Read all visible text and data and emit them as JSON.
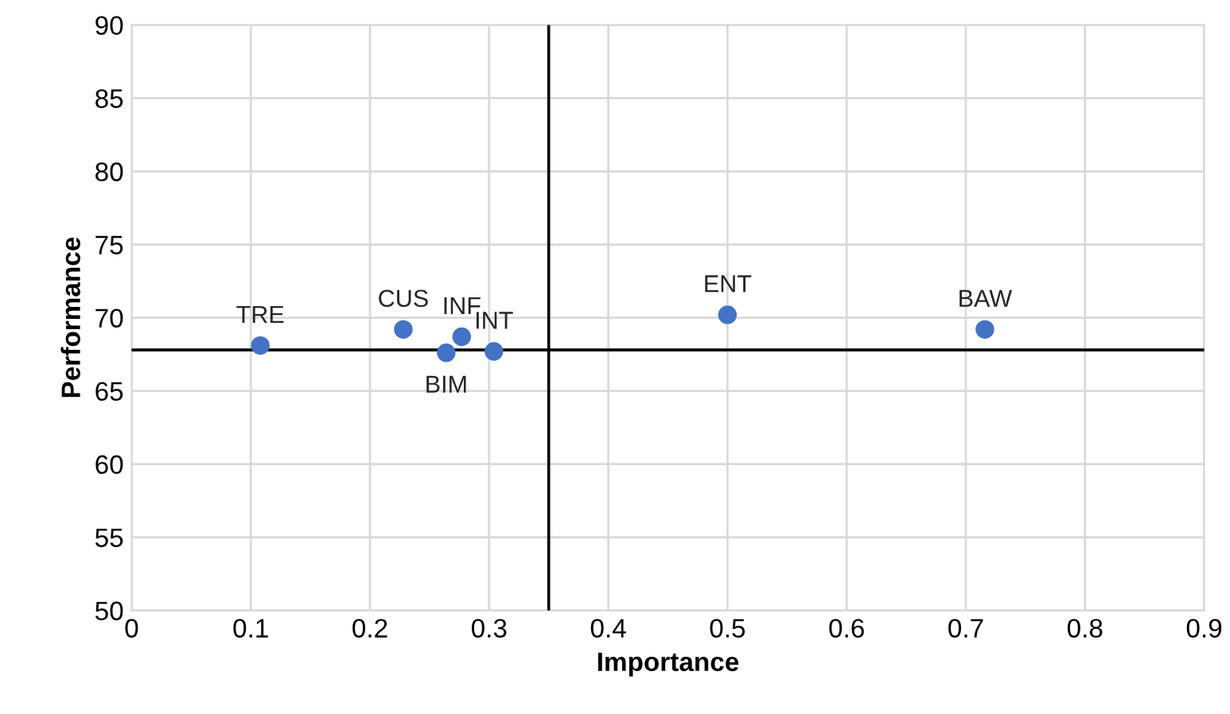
{
  "chart_data": {
    "type": "scatter",
    "xlabel": "Importance",
    "ylabel": "Performance",
    "series": [
      {
        "color": "#4472c4",
        "x": [
          0.108,
          0.228,
          0.277,
          0.264,
          0.304,
          0.5,
          0.716
        ],
        "values": [
          68.1,
          69.2,
          68.7,
          67.6,
          67.7,
          70.2,
          69.2
        ]
      }
    ],
    "annotations": [
      {
        "text": "TRE",
        "x": 0.108,
        "y": 68.1
      },
      {
        "text": "CUS",
        "x": 0.228,
        "y": 69.2
      },
      {
        "text": "INF",
        "x": 0.277,
        "y": 68.7
      },
      {
        "text": "BIM",
        "x": 0.264,
        "y": 67.6
      },
      {
        "text": "INT",
        "x": 0.304,
        "y": 67.7
      },
      {
        "text": "ENT",
        "x": 0.5,
        "y": 70.2
      },
      {
        "text": "BAW",
        "x": 0.716,
        "y": 69.2
      }
    ],
    "ref_lines": [
      {
        "axis": "x",
        "value": 0.35,
        "color": "#000000"
      },
      {
        "axis": "y",
        "value": 67.8,
        "color": "#000000"
      }
    ],
    "xlim": [
      0,
      0.9
    ],
    "xticks": [
      0,
      0.1,
      0.2,
      0.3,
      0.4,
      0.5,
      0.6,
      0.7,
      0.8,
      0.9
    ],
    "ylim": [
      50,
      90
    ],
    "yticks": [
      50,
      55,
      60,
      65,
      70,
      75,
      80,
      85,
      90
    ],
    "grid": true,
    "marker": "circle",
    "legend": false
  }
}
